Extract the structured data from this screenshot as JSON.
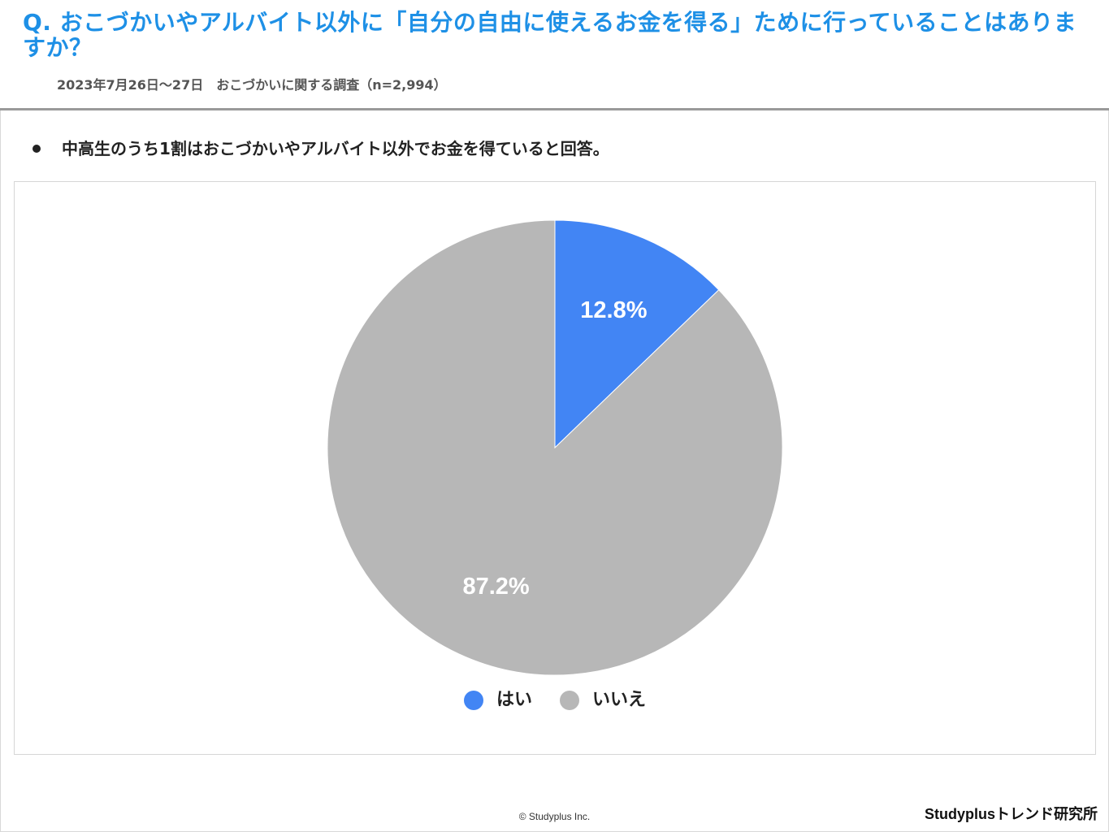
{
  "header": {
    "question": "Q. おこづかいやアルバイト以外に「自分の自由に使えるお金を得る」ために行っていることはありますか？",
    "survey_info": "2023年7月26日～27日　おこづかいに関する調査（n=2,994）"
  },
  "summary": {
    "text": "中高生のうち1割はおこづかいやアルバイト以外でお金を得ていると回答。"
  },
  "chart_data": {
    "type": "pie",
    "slices": [
      {
        "label": "はい",
        "value": 12.8,
        "display": "12.8%",
        "color": "#4285f4"
      },
      {
        "label": "いいえ",
        "value": 87.2,
        "display": "87.2%",
        "color": "#b7b7b7"
      }
    ],
    "start_angle": "12 o'clock",
    "direction": "clockwise",
    "legend_position": "bottom"
  },
  "footer": {
    "copyright": "© Studyplus Inc.",
    "brand": "Studyplusトレンド研究所"
  },
  "colors": {
    "title": "#1e90e6",
    "yes": "#4285f4",
    "no": "#b7b7b7",
    "rule": "#9a9a9a"
  }
}
